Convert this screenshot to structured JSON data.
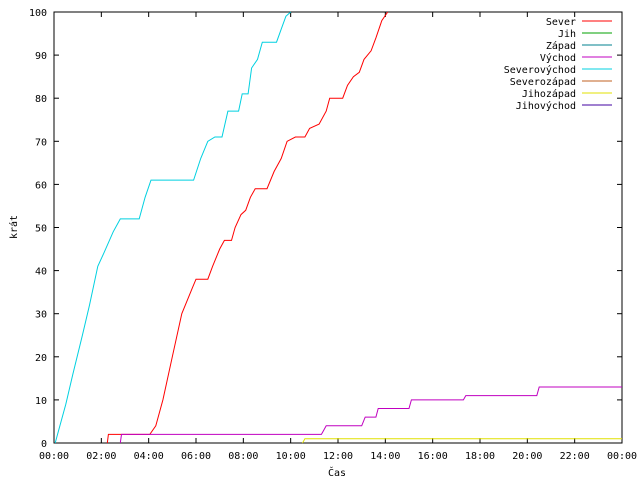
{
  "chart_data": {
    "type": "line",
    "xlabel": "Čas",
    "ylabel": "krát",
    "xlim": [
      0,
      24
    ],
    "ylim": [
      0,
      100
    ],
    "x_ticks": [
      {
        "value": 0,
        "label": "00:00"
      },
      {
        "value": 2,
        "label": "02:00"
      },
      {
        "value": 4,
        "label": "04:00"
      },
      {
        "value": 6,
        "label": "06:00"
      },
      {
        "value": 8,
        "label": "08:00"
      },
      {
        "value": 10,
        "label": "10:00"
      },
      {
        "value": 12,
        "label": "12:00"
      },
      {
        "value": 14,
        "label": "14:00"
      },
      {
        "value": 16,
        "label": "16:00"
      },
      {
        "value": 18,
        "label": "18:00"
      },
      {
        "value": 20,
        "label": "20:00"
      },
      {
        "value": 22,
        "label": "22:00"
      },
      {
        "value": 24,
        "label": "00:00"
      }
    ],
    "y_ticks": [
      0,
      10,
      20,
      30,
      40,
      50,
      60,
      70,
      80,
      90,
      100
    ],
    "grid": false,
    "legend_position": "top-right",
    "series": [
      {
        "name": "Sever",
        "color": "#ff0000",
        "points": [
          [
            2.25,
            0
          ],
          [
            2.3,
            2
          ],
          [
            4.05,
            2
          ],
          [
            4.3,
            4
          ],
          [
            4.6,
            10
          ],
          [
            5.0,
            20
          ],
          [
            5.4,
            30
          ],
          [
            5.85,
            36
          ],
          [
            6.0,
            38
          ],
          [
            6.5,
            38
          ],
          [
            6.7,
            41
          ],
          [
            7.0,
            45
          ],
          [
            7.2,
            47
          ],
          [
            7.5,
            47
          ],
          [
            7.65,
            50
          ],
          [
            7.9,
            53
          ],
          [
            8.1,
            54
          ],
          [
            8.3,
            57
          ],
          [
            8.5,
            59
          ],
          [
            9.0,
            59
          ],
          [
            9.3,
            63
          ],
          [
            9.6,
            66
          ],
          [
            9.85,
            70
          ],
          [
            10.2,
            71
          ],
          [
            10.6,
            71
          ],
          [
            10.8,
            73
          ],
          [
            11.2,
            74
          ],
          [
            11.5,
            77
          ],
          [
            11.65,
            80
          ],
          [
            12.2,
            80
          ],
          [
            12.4,
            83
          ],
          [
            12.65,
            85
          ],
          [
            12.9,
            86
          ],
          [
            13.1,
            89
          ],
          [
            13.4,
            91
          ],
          [
            13.6,
            94
          ],
          [
            13.85,
            98
          ],
          [
            14.1,
            100
          ]
        ]
      },
      {
        "name": "Jih",
        "color": "#00a000",
        "points": []
      },
      {
        "name": "Západ",
        "color": "#00808f",
        "points": []
      },
      {
        "name": "Východ",
        "color": "#c000c0",
        "points": [
          [
            2.8,
            0
          ],
          [
            2.85,
            2
          ],
          [
            11.3,
            2
          ],
          [
            11.4,
            3
          ],
          [
            11.5,
            4
          ],
          [
            13.0,
            4
          ],
          [
            13.15,
            6
          ],
          [
            13.6,
            6
          ],
          [
            13.7,
            8
          ],
          [
            15.0,
            8
          ],
          [
            15.1,
            10
          ],
          [
            17.3,
            10
          ],
          [
            17.4,
            11
          ],
          [
            20.4,
            11
          ],
          [
            20.5,
            13
          ],
          [
            24,
            13
          ]
        ]
      },
      {
        "name": "Severovýchod",
        "color": "#00d0e0",
        "points": [
          [
            0.05,
            0
          ],
          [
            0.2,
            3
          ],
          [
            0.5,
            9
          ],
          [
            0.8,
            16
          ],
          [
            1.2,
            25
          ],
          [
            1.5,
            32
          ],
          [
            1.85,
            41
          ],
          [
            2.1,
            44
          ],
          [
            2.5,
            49
          ],
          [
            2.8,
            52
          ],
          [
            3.6,
            52
          ],
          [
            3.85,
            57
          ],
          [
            4.1,
            61
          ],
          [
            5.9,
            61
          ],
          [
            6.2,
            66
          ],
          [
            6.5,
            70
          ],
          [
            6.8,
            71
          ],
          [
            7.1,
            71
          ],
          [
            7.35,
            77
          ],
          [
            7.8,
            77
          ],
          [
            7.95,
            81
          ],
          [
            8.2,
            81
          ],
          [
            8.35,
            87
          ],
          [
            8.6,
            89
          ],
          [
            8.8,
            93
          ],
          [
            9.4,
            93
          ],
          [
            9.6,
            96
          ],
          [
            9.8,
            99
          ],
          [
            10.0,
            100
          ]
        ]
      },
      {
        "name": "Severozápad",
        "color": "#c06020",
        "points": []
      },
      {
        "name": "Jihozápad",
        "color": "#e0e000",
        "points": [
          [
            10.5,
            0
          ],
          [
            10.6,
            1
          ],
          [
            24,
            1
          ]
        ]
      },
      {
        "name": "Jihovýchod",
        "color": "#4000a0",
        "points": []
      }
    ]
  }
}
